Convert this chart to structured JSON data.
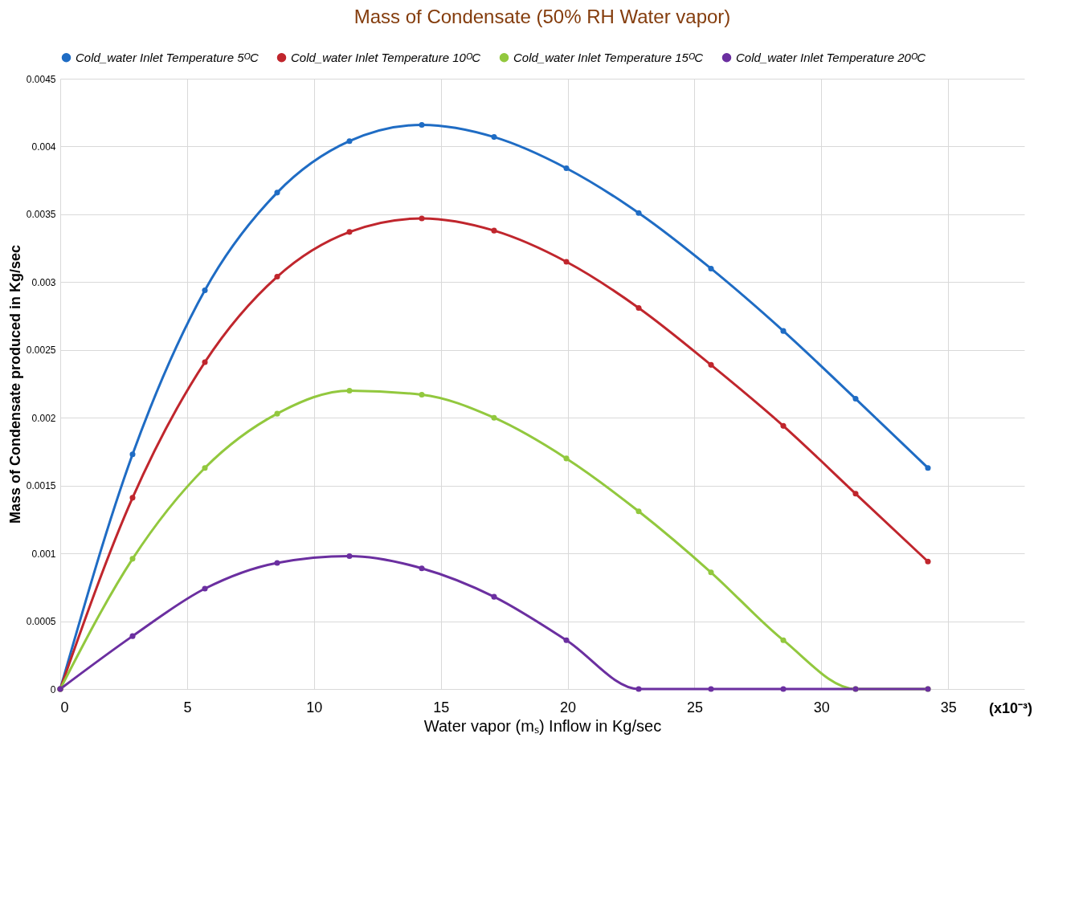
{
  "chart_data": {
    "type": "line",
    "title": "Mass of Condensate (50% RH Water vapor)",
    "xlabel": "Water vapor (mₛ) Inflow in Kg/sec",
    "ylabel": "Mass of Condensate produced in Kg/sec",
    "annotations": [
      "(x10⁻³)"
    ],
    "x": [
      0,
      2.85,
      5.7,
      8.55,
      11.4,
      14.25,
      17.1,
      19.95,
      22.8,
      25.65,
      28.5,
      31.35,
      34.2
    ],
    "xlim": [
      0,
      38
    ],
    "xticks": [
      0,
      5,
      10,
      15,
      20,
      25,
      30,
      35
    ],
    "ylim": [
      0,
      0.0045
    ],
    "yticks": [
      0,
      0.0005,
      {
        "value": 0.001,
        "label": "0.001"
      },
      0.0015,
      {
        "value": 0.002,
        "label": "0.002"
      },
      0.0025,
      {
        "value": 0.003,
        "label": "0.003"
      },
      0.0035,
      {
        "value": 0.004,
        "label": "0.004"
      },
      0.0045
    ],
    "grid": true,
    "legend": "top",
    "marker": "circle",
    "line_style": "solid",
    "series": [
      {
        "name": "Cold_water Inlet Temperature 5ᴼC",
        "color": "#1f6cc4",
        "values": [
          0,
          0.00173,
          0.00294,
          0.00366,
          0.00404,
          0.00416,
          0.00407,
          0.00384,
          0.00351,
          0.0031,
          0.00264,
          0.00214,
          0.00163
        ]
      },
      {
        "name": "Cold_water Inlet Temperature 10ᴼC",
        "color": "#c0262d",
        "values": [
          0,
          0.00141,
          0.00241,
          0.00304,
          0.00337,
          0.00347,
          0.00338,
          0.00315,
          0.00281,
          0.00239,
          0.00194,
          0.00144,
          0.00094
        ]
      },
      {
        "name": "Cold_water Inlet Temperature 15ᴼC",
        "color": "#92c83e",
        "values": [
          0,
          0.00096,
          0.00163,
          0.00203,
          0.0022,
          0.00217,
          0.002,
          0.0017,
          0.00131,
          0.00086,
          0.00036,
          0,
          0
        ]
      },
      {
        "name": "Cold_water Inlet Temperature 20ᴼC",
        "color": "#6b2fa0",
        "values": [
          0,
          0.00039,
          0.00074,
          0.00093,
          0.00098,
          0.00089,
          0.00068,
          0.00036,
          0,
          0,
          0,
          0,
          0
        ]
      }
    ]
  }
}
